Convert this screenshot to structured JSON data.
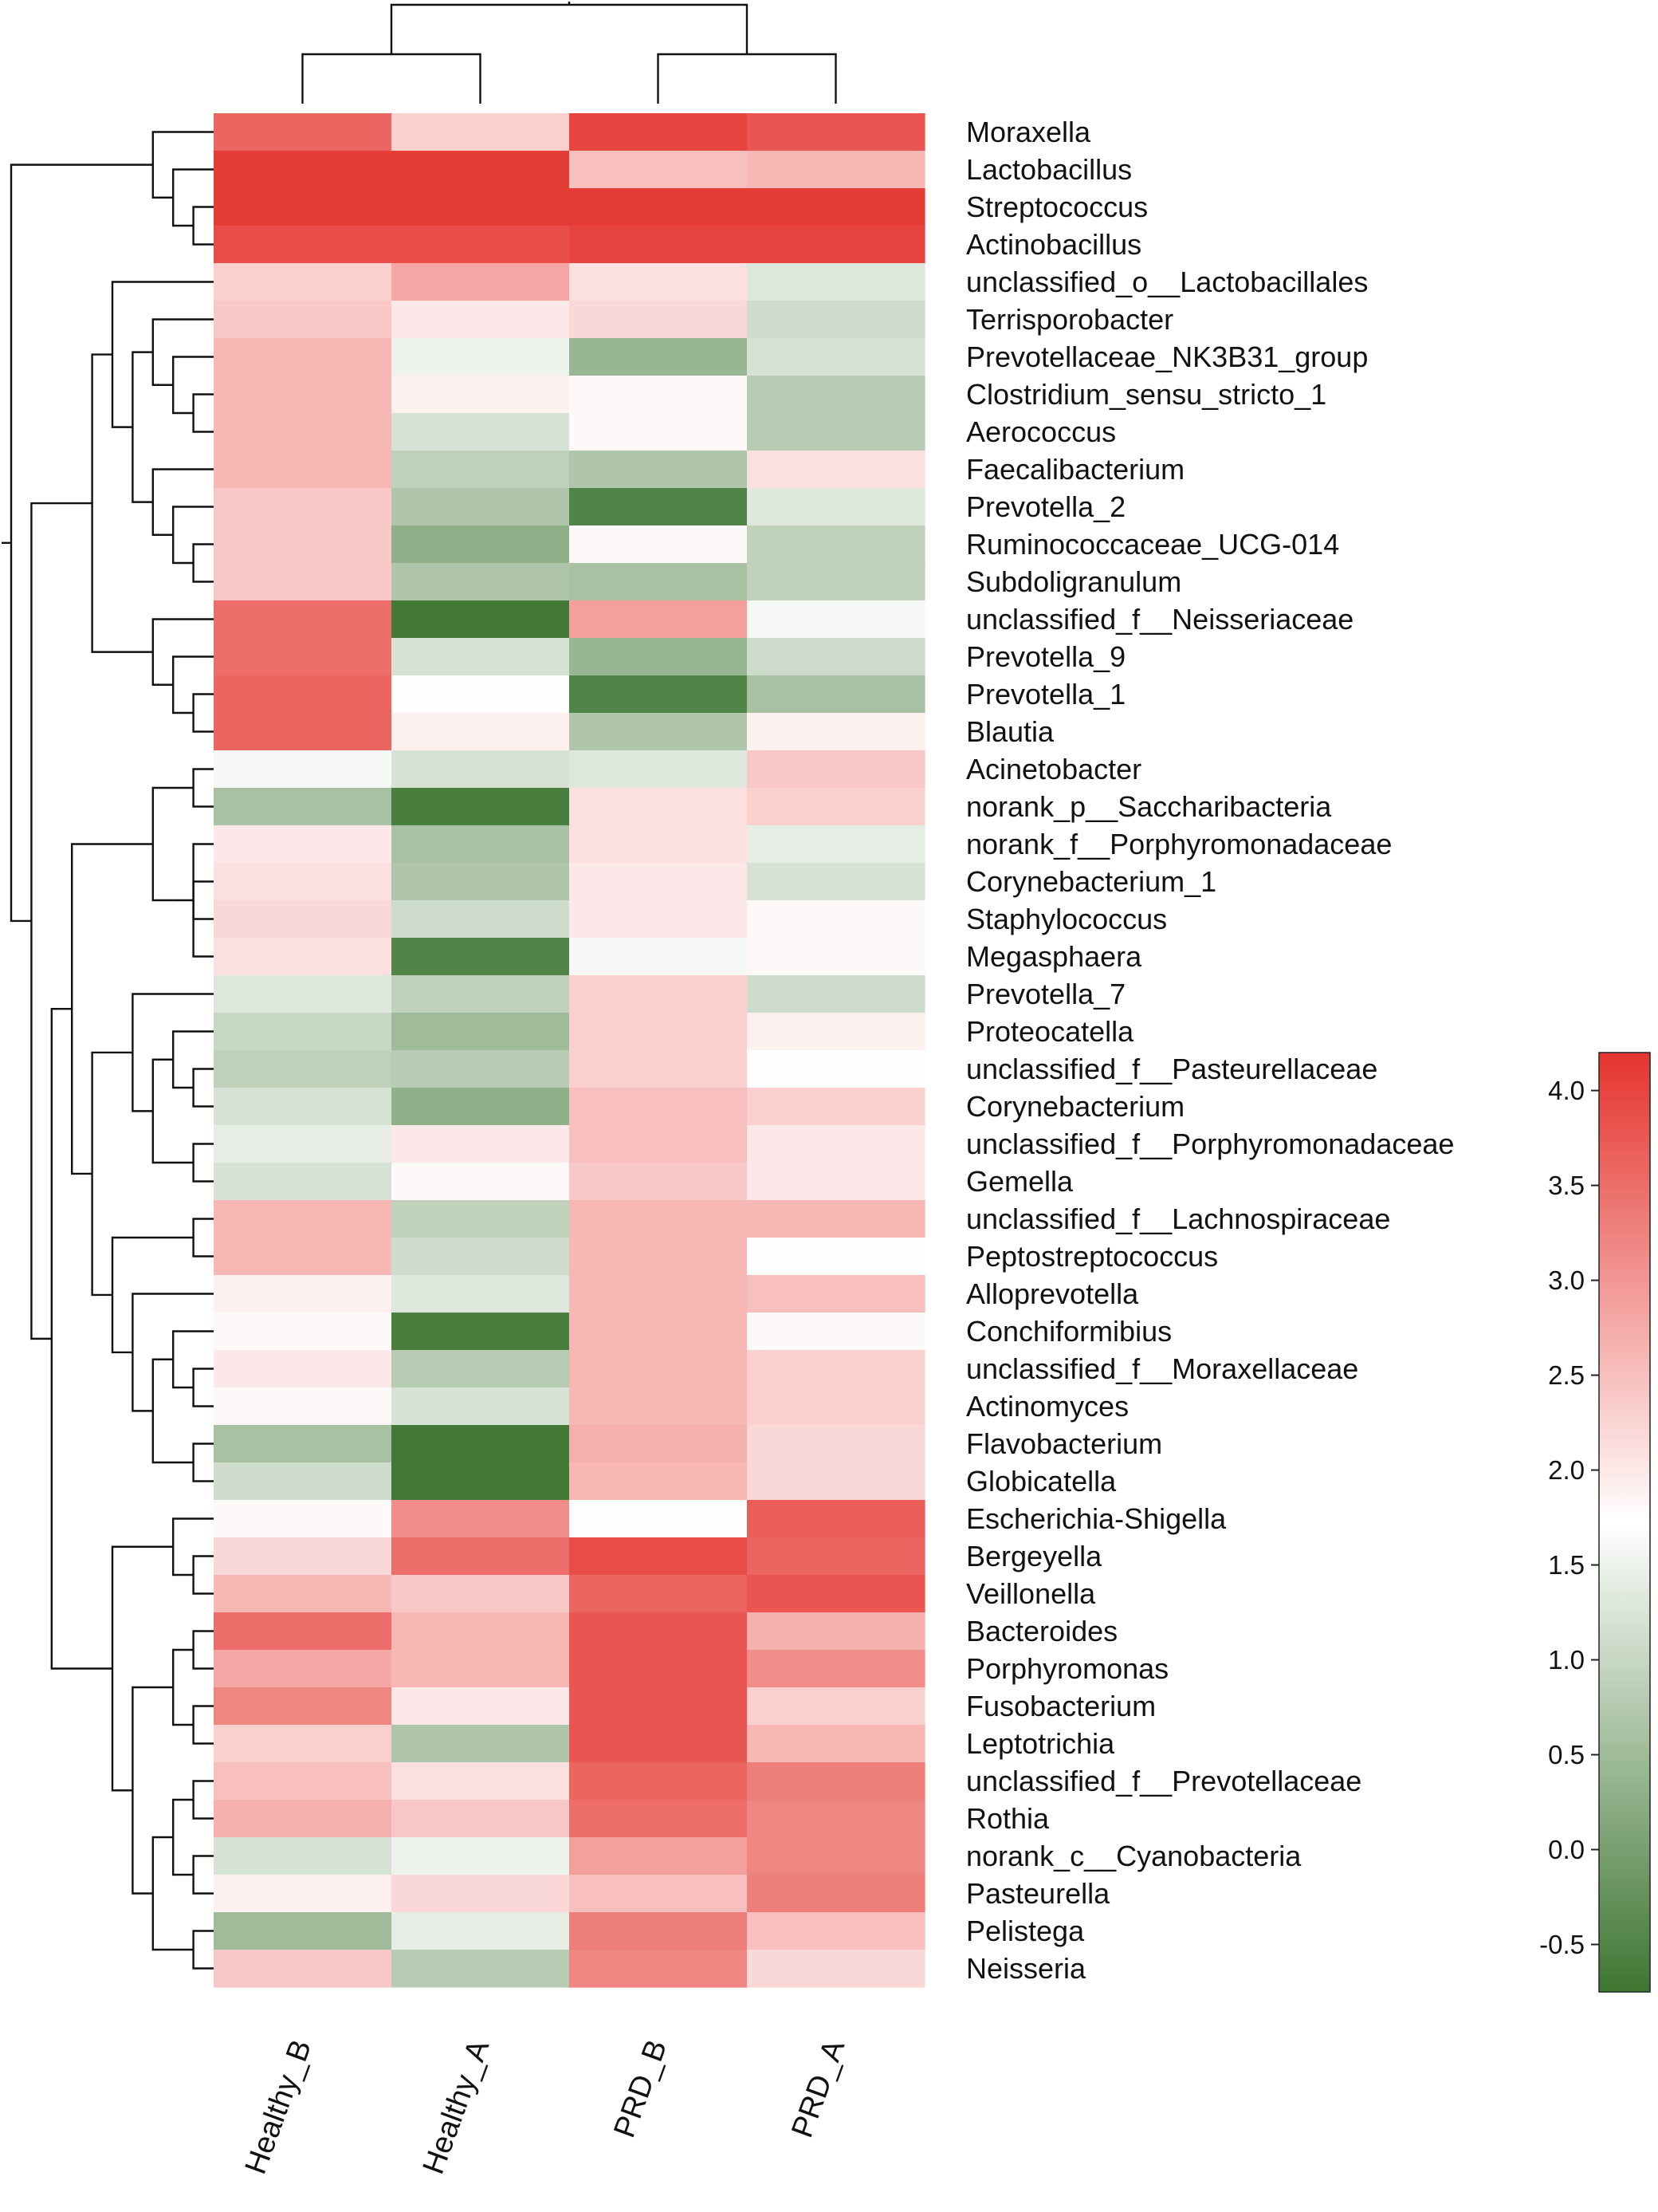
{
  "chart_data": {
    "type": "heatmap",
    "columns": [
      "Healthy_B",
      "Healthy_A",
      "PRD_B",
      "PRD_A"
    ],
    "rows": [
      "Moraxella",
      "Lactobacillus",
      "Streptococcus",
      "Actinobacillus",
      "unclassified_o__Lactobacillales",
      "Terrisporobacter",
      "Prevotellaceae_NK3B31_group",
      "Clostridium_sensu_stricto_1",
      "Aerococcus",
      "Faecalibacterium",
      "Prevotella_2",
      "Ruminococcaceae_UCG-014",
      "Subdoligranulum",
      "unclassified_f__Neisseriaceae",
      "Prevotella_9",
      "Prevotella_1",
      "Blautia",
      "Acinetobacter",
      "norank_p__Saccharibacteria",
      "norank_f__Porphyromonadaceae",
      "Corynebacterium_1",
      "Staphylococcus",
      "Megasphaera",
      "Prevotella_7",
      "Proteocatella",
      "unclassified_f__Pasteurellaceae",
      "Corynebacterium",
      "unclassified_f__Porphyromonadaceae",
      "Gemella",
      "unclassified_f__Lachnospiraceae",
      "Peptostreptococcus",
      "Alloprevotella",
      "Conchiformibius",
      "unclassified_f__Moraxellaceae",
      "Actinomyces",
      "Flavobacterium",
      "Globicatella",
      "Escherichia-Shigella",
      "Bergeyella",
      "Veillonella",
      "Bacteroides",
      "Porphyromonas",
      "Fusobacterium",
      "Leptotrichia",
      "unclassified_f__Prevotellaceae",
      "Rothia",
      "norank_c__Cyanobacteria",
      "Pasteurella",
      "Pelistega",
      "Neisseria"
    ],
    "values": [
      [
        3.6,
        2.3,
        4.0,
        3.8
      ],
      [
        4.1,
        4.1,
        2.5,
        2.6
      ],
      [
        4.1,
        4.1,
        4.1,
        4.1
      ],
      [
        3.9,
        3.9,
        4.0,
        4.0
      ],
      [
        2.3,
        2.8,
        2.1,
        1.3
      ],
      [
        2.4,
        2.0,
        2.2,
        1.1
      ],
      [
        2.6,
        1.5,
        0.4,
        1.2
      ],
      [
        2.6,
        1.9,
        1.8,
        0.8
      ],
      [
        2.6,
        1.2,
        1.8,
        0.8
      ],
      [
        2.6,
        0.9,
        0.7,
        2.1
      ],
      [
        2.4,
        0.7,
        -0.5,
        1.3
      ],
      [
        2.4,
        0.3,
        1.8,
        0.9
      ],
      [
        2.4,
        0.7,
        0.6,
        0.9
      ],
      [
        3.5,
        -0.7,
        2.9,
        1.6
      ],
      [
        3.5,
        1.2,
        0.4,
        1.1
      ],
      [
        3.6,
        1.7,
        -0.5,
        0.6
      ],
      [
        3.6,
        1.9,
        0.7,
        1.9
      ],
      [
        1.6,
        1.2,
        1.3,
        2.4
      ],
      [
        0.6,
        -0.6,
        2.1,
        2.3
      ],
      [
        2.0,
        0.6,
        2.1,
        1.4
      ],
      [
        2.1,
        0.7,
        2.0,
        1.2
      ],
      [
        2.2,
        1.1,
        2.0,
        1.8
      ],
      [
        2.1,
        -0.5,
        1.6,
        1.8
      ],
      [
        1.3,
        0.9,
        2.3,
        1.1
      ],
      [
        1.0,
        0.5,
        2.3,
        1.9
      ],
      [
        0.9,
        0.8,
        2.3,
        1.7
      ],
      [
        1.2,
        0.3,
        2.5,
        2.3
      ],
      [
        1.4,
        2.0,
        2.5,
        2.0
      ],
      [
        1.2,
        1.8,
        2.4,
        2.0
      ],
      [
        2.6,
        0.9,
        2.6,
        2.6
      ],
      [
        2.6,
        1.1,
        2.6,
        1.7
      ],
      [
        1.9,
        1.3,
        2.6,
        2.5
      ],
      [
        1.8,
        -0.6,
        2.6,
        1.8
      ],
      [
        2.0,
        0.8,
        2.6,
        2.3
      ],
      [
        1.8,
        1.2,
        2.6,
        2.3
      ],
      [
        0.6,
        -0.7,
        2.7,
        2.2
      ],
      [
        1.1,
        -0.7,
        2.6,
        2.2
      ],
      [
        1.8,
        3.1,
        1.7,
        3.7
      ],
      [
        2.2,
        3.5,
        3.9,
        3.6
      ],
      [
        2.6,
        2.4,
        3.6,
        3.8
      ],
      [
        3.5,
        2.6,
        3.8,
        2.7
      ],
      [
        2.8,
        2.6,
        3.8,
        3.1
      ],
      [
        3.2,
        2.0,
        3.8,
        2.3
      ],
      [
        2.3,
        0.7,
        3.8,
        2.6
      ],
      [
        2.5,
        2.1,
        3.6,
        3.3
      ],
      [
        2.7,
        2.4,
        3.5,
        3.2
      ],
      [
        1.2,
        1.5,
        2.9,
        3.2
      ],
      [
        1.9,
        2.2,
        2.5,
        3.3
      ],
      [
        0.5,
        1.4,
        3.3,
        2.5
      ],
      [
        2.4,
        0.8,
        3.2,
        2.2
      ]
    ],
    "row_dendrogram": [
      [
        2,
        3
      ],
      [
        1,
        -1
      ],
      [
        0,
        -2
      ],
      [
        7,
        8
      ],
      [
        6,
        -4
      ],
      [
        5,
        -5
      ],
      [
        11,
        12
      ],
      [
        10,
        -7
      ],
      [
        9,
        -8
      ],
      [
        -6,
        -9
      ],
      [
        4,
        -10
      ],
      [
        15,
        16
      ],
      [
        14,
        -12
      ],
      [
        13,
        -13
      ],
      [
        -11,
        -14
      ],
      [
        20,
        21
      ],
      [
        19,
        22
      ],
      [
        -16,
        -17
      ],
      [
        17,
        18
      ],
      [
        -19,
        -18
      ],
      [
        25,
        26
      ],
      [
        24,
        -21
      ],
      [
        27,
        28
      ],
      [
        -22,
        -23
      ],
      [
        23,
        -24
      ],
      [
        33,
        34
      ],
      [
        32,
        -26
      ],
      [
        35,
        36
      ],
      [
        -27,
        -28
      ],
      [
        31,
        -29
      ],
      [
        29,
        30
      ],
      [
        -31,
        -30
      ],
      [
        -25,
        -32
      ],
      [
        -20,
        -33
      ],
      [
        38,
        39
      ],
      [
        37,
        -35
      ],
      [
        40,
        41
      ],
      [
        42,
        43
      ],
      [
        -37,
        -38
      ],
      [
        44,
        45
      ],
      [
        46,
        47
      ],
      [
        -40,
        -41
      ],
      [
        48,
        49
      ],
      [
        -42,
        -43
      ],
      [
        -39,
        -44
      ],
      [
        -36,
        -45
      ],
      [
        -34,
        -46
      ],
      [
        -15,
        -47
      ],
      [
        -3,
        -48
      ]
    ],
    "column_dendrogram": [
      [
        0,
        1
      ],
      [
        2,
        3
      ],
      [
        -1,
        -2
      ]
    ],
    "colorbar": {
      "min": -0.75,
      "max": 4.2,
      "ticks": [
        "4.0",
        "3.5",
        "3.0",
        "2.5",
        "2.0",
        "1.5",
        "1.0",
        "0.5",
        "0.0",
        "-0.5"
      ],
      "colors": [
        "#3e7632",
        "#ffffff",
        "#e5342e"
      ]
    },
    "title": "",
    "xlabel": "",
    "ylabel": ""
  }
}
